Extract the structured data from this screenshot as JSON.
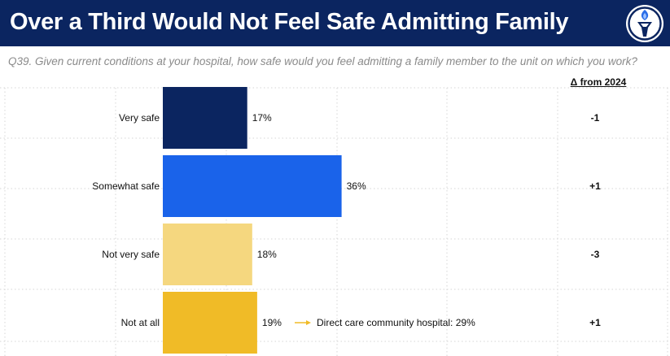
{
  "header": {
    "title": "Over a Third Would Not Feel Safe Admitting Family"
  },
  "question": "Q39. Given current conditions at your hospital, how safe would you feel admitting a family member to the unit on which you work?",
  "delta_header": "Δ from 2024",
  "colors": {
    "header_bg": "#0b2560",
    "very_safe": "#0b2560",
    "somewhat_safe": "#1a63ea",
    "not_very_safe": "#f5d77f",
    "not_at_all": "#f0bb27",
    "arrow": "#f0bb27"
  },
  "chart_data": {
    "type": "bar",
    "orientation": "horizontal",
    "title": "Over a Third Would Not Feel Safe Admitting Family",
    "categories": [
      "Very safe",
      "Somewhat safe",
      "Not very safe",
      "Not at all"
    ],
    "values": [
      17,
      36,
      18,
      19
    ],
    "value_labels": [
      "17%",
      "36%",
      "18%",
      "19%"
    ],
    "deltas": [
      "-1",
      "+1",
      "-3",
      "+1"
    ],
    "xlim": [
      0,
      100
    ],
    "annotation": {
      "category": "Not at all",
      "text": "Direct care community hospital: 29%"
    },
    "grid": true
  }
}
